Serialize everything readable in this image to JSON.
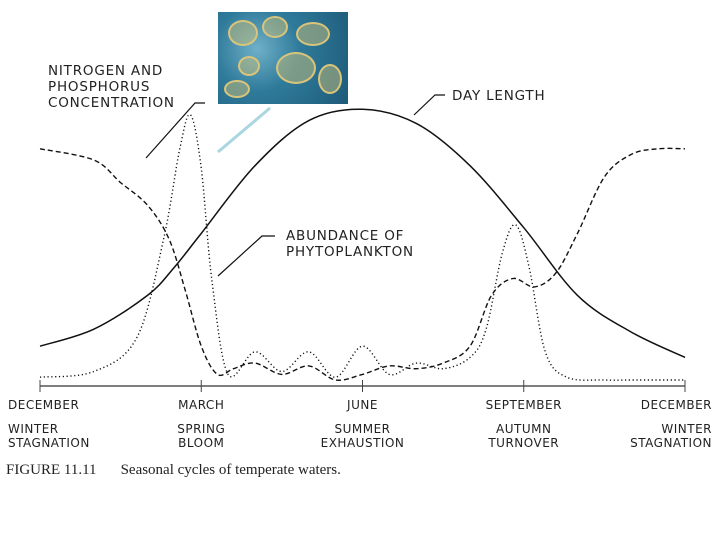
{
  "figure": {
    "caption_number": "FIGURE 11.11",
    "caption_text": "Seasonal cycles of temperate waters."
  },
  "inset_image": {
    "description_icon": "phytoplankton-micrograph-icon"
  },
  "chart_data": {
    "type": "line",
    "x_ticks": [
      "DECEMBER",
      "MARCH",
      "JUNE",
      "SEPTEMBER",
      "DECEMBER"
    ],
    "x_subticks": [
      [
        "WINTER",
        "STAGNATION"
      ],
      [
        "SPRING",
        "BLOOM"
      ],
      [
        "SUMMER",
        "EXHAUSTION"
      ],
      [
        "AUTUMN",
        "TURNOVER"
      ],
      [
        "WINTER",
        "STAGNATION"
      ]
    ],
    "xlim": [
      0,
      12
    ],
    "ylim": [
      0,
      1
    ],
    "series": [
      {
        "name": "DAY LENGTH",
        "style": "solid",
        "color": "#111111",
        "x": [
          0,
          1,
          2,
          2.5,
          3,
          4,
          5,
          6,
          7,
          8,
          9,
          10,
          11,
          12
        ],
        "y": [
          0.12,
          0.18,
          0.3,
          0.4,
          0.52,
          0.76,
          0.92,
          0.96,
          0.91,
          0.76,
          0.54,
          0.3,
          0.17,
          0.08
        ]
      },
      {
        "name": "NITROGEN AND PHOSPHORUS CONCENTRATION",
        "style": "dashed",
        "color": "#111111",
        "x": [
          0,
          1,
          1.5,
          2,
          2.4,
          2.7,
          3,
          3.3,
          3.6,
          4,
          4.5,
          5,
          5.5,
          6,
          6.5,
          7,
          7.5,
          8,
          8.4,
          8.8,
          9.2,
          9.6,
          10,
          10.5,
          11,
          11.5,
          12
        ],
        "y": [
          0.82,
          0.78,
          0.7,
          0.62,
          0.5,
          0.32,
          0.12,
          0.02,
          0.04,
          0.06,
          0.02,
          0.05,
          0.0,
          0.02,
          0.05,
          0.04,
          0.06,
          0.12,
          0.3,
          0.36,
          0.33,
          0.38,
          0.52,
          0.72,
          0.8,
          0.82,
          0.82
        ]
      },
      {
        "name": "ABUNDANCE OF PHYTOPLANKTON",
        "style": "dotted",
        "color": "#111111",
        "x": [
          0,
          1,
          1.8,
          2.3,
          2.6,
          2.8,
          3,
          3.2,
          3.5,
          4,
          4.5,
          5,
          5.5,
          6,
          6.5,
          7,
          7.5,
          8,
          8.3,
          8.6,
          8.85,
          9.1,
          9.4,
          9.8,
          10.5,
          11,
          12
        ],
        "y": [
          0.01,
          0.03,
          0.15,
          0.5,
          0.82,
          0.94,
          0.75,
          0.35,
          0.02,
          0.1,
          0.03,
          0.1,
          0.01,
          0.12,
          0.02,
          0.06,
          0.04,
          0.08,
          0.18,
          0.45,
          0.55,
          0.4,
          0.1,
          0.01,
          0.0,
          0.0,
          0.0
        ]
      }
    ],
    "annotations": [
      {
        "target": "NITROGEN AND PHOSPHORUS CONCENTRATION",
        "lines": [
          "NITROGEN  AND",
          "PHOSPHORUS",
          "CONCENTRATION"
        ]
      },
      {
        "target": "DAY LENGTH",
        "lines": [
          "DAY  LENGTH"
        ]
      },
      {
        "target": "ABUNDANCE OF PHYTOPLANKTON",
        "lines": [
          "ABUNDANCE  OF",
          "PHYTOPLANKTON"
        ]
      }
    ]
  }
}
